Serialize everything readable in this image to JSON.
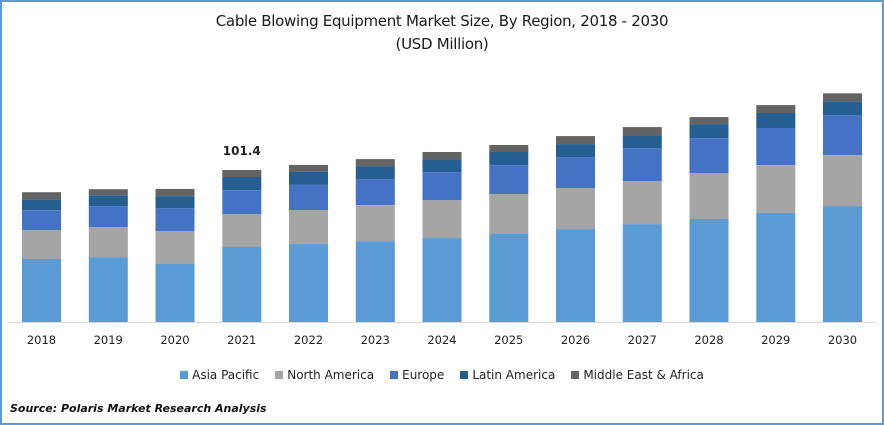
{
  "chart_data": {
    "type": "bar",
    "stacked": true,
    "title": "Cable Blowing Equipment Market Size, By Region, 2018 - 2030",
    "subtitle": "(USD Million)",
    "xlabel": "",
    "ylabel": "",
    "ylim": [
      0,
      200
    ],
    "grid": false,
    "legend_position": "bottom",
    "categories": [
      "2018",
      "2019",
      "2020",
      "2021",
      "2022",
      "2023",
      "2024",
      "2025",
      "2026",
      "2027",
      "2028",
      "2029",
      "2030"
    ],
    "series": [
      {
        "name": "Asia Pacific",
        "color": "#5b9bd5",
        "values": [
          42.0,
          43.3,
          38.7,
          50.0,
          52.0,
          54.0,
          56.0,
          58.7,
          62.0,
          65.3,
          68.7,
          72.7,
          77.3
        ]
      },
      {
        "name": "North America",
        "color": "#a5a5a5",
        "values": [
          19.3,
          20.0,
          22.0,
          22.0,
          22.7,
          24.0,
          25.3,
          26.7,
          27.3,
          28.7,
          30.7,
          32.0,
          34.0
        ]
      },
      {
        "name": "Europe",
        "color": "#4472c4",
        "values": [
          13.3,
          14.0,
          15.3,
          16.0,
          16.7,
          17.3,
          18.7,
          19.3,
          20.7,
          22.0,
          23.3,
          24.7,
          26.7
        ]
      },
      {
        "name": "Latin America",
        "color": "#255e91",
        "values": [
          7.3,
          7.3,
          8.0,
          8.7,
          8.7,
          8.7,
          8.7,
          8.7,
          8.7,
          8.7,
          9.3,
          10.0,
          9.3
        ]
      },
      {
        "name": "Middle East & Africa",
        "color": "#636363",
        "values": [
          4.7,
          4.0,
          4.7,
          4.7,
          4.7,
          4.7,
          4.7,
          4.7,
          5.3,
          5.3,
          4.7,
          5.3,
          5.3
        ]
      }
    ],
    "annotations": [
      {
        "category": "2021",
        "text": "101.4"
      }
    ]
  },
  "source": "Source: Polaris  Market Research Analysis"
}
